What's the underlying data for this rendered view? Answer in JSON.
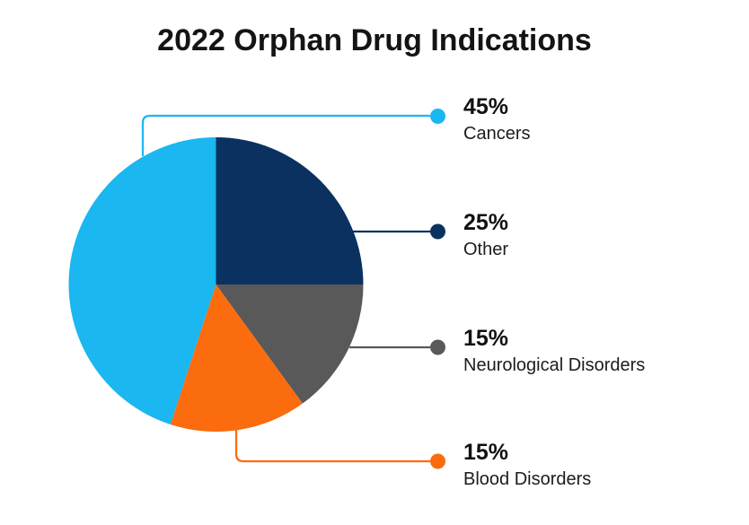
{
  "chart_data": {
    "type": "pie",
    "title": "2022 Orphan Drug Indications",
    "segments": [
      {
        "label": "Cancers",
        "value": 45,
        "pct_label": "45%",
        "color": "#1AB7F0"
      },
      {
        "label": "Other",
        "value": 25,
        "pct_label": "25%",
        "color": "#0B3161"
      },
      {
        "label": "Neurological Disorders",
        "value": 15,
        "pct_label": "15%",
        "color": "#595959"
      },
      {
        "label": "Blood Disorders",
        "value": 15,
        "pct_label": "15%",
        "color": "#FB6C0F"
      }
    ],
    "rotation_deg": 198,
    "direction": "clockwise",
    "legend_position": "right",
    "callout_style": "leader-line-with-dot"
  },
  "colors": {
    "background": "#FFFFFF",
    "title_text": "#141414",
    "pct_text": "#111111",
    "label_text": "#1C1C1C"
  }
}
